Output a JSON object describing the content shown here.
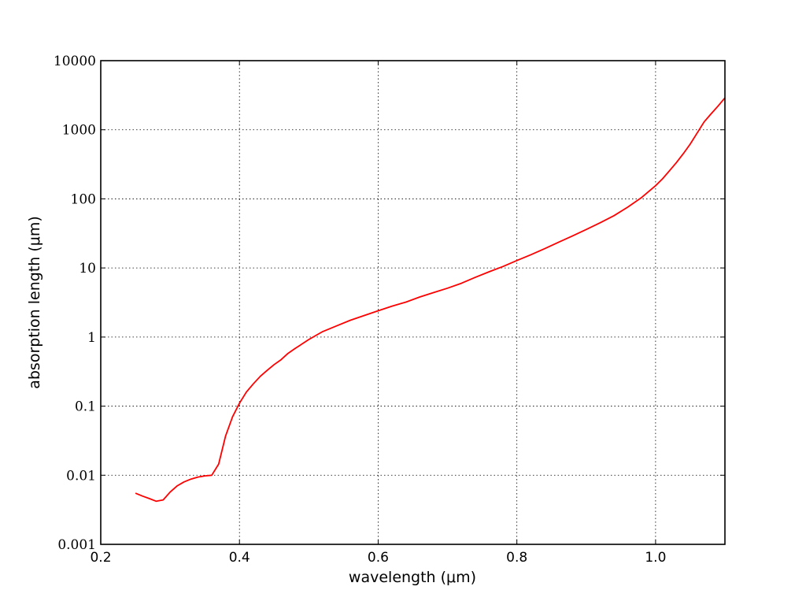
{
  "chart_data": {
    "type": "line",
    "title": "",
    "xlabel": "wavelength (μm)",
    "ylabel": "absorption length (μm)",
    "xscale": "linear",
    "yscale": "log",
    "xlim": [
      0.2,
      1.1
    ],
    "ylim": [
      0.001,
      10000
    ],
    "grid": true,
    "legend": "none",
    "x_ticks": [
      0.2,
      0.4,
      0.6,
      0.8,
      1.0
    ],
    "x_tick_labels": [
      "0.2",
      "0.4",
      "0.6",
      "0.8",
      "1.0"
    ],
    "y_ticks": [
      0.001,
      0.01,
      0.1,
      1,
      10,
      100,
      1000,
      10000
    ],
    "y_tick_labels": [
      "0.001",
      "0.01",
      "0.1",
      "1",
      "10",
      "100",
      "1000",
      "10000"
    ],
    "series": [
      {
        "color": "#ff0000",
        "x": [
          0.25,
          0.26,
          0.27,
          0.28,
          0.29,
          0.3,
          0.31,
          0.32,
          0.33,
          0.34,
          0.35,
          0.36,
          0.37,
          0.38,
          0.39,
          0.4,
          0.41,
          0.42,
          0.43,
          0.44,
          0.45,
          0.46,
          0.47,
          0.48,
          0.49,
          0.5,
          0.52,
          0.54,
          0.56,
          0.58,
          0.6,
          0.62,
          0.64,
          0.66,
          0.68,
          0.7,
          0.72,
          0.74,
          0.76,
          0.78,
          0.8,
          0.82,
          0.84,
          0.86,
          0.88,
          0.9,
          0.92,
          0.94,
          0.96,
          0.98,
          1.0,
          1.01,
          1.02,
          1.03,
          1.04,
          1.05,
          1.06,
          1.07,
          1.08,
          1.09,
          1.1
        ],
        "values": [
          0.0055,
          0.005,
          0.0046,
          0.0042,
          0.0044,
          0.0057,
          0.007,
          0.008,
          0.0088,
          0.0094,
          0.0098,
          0.01,
          0.0145,
          0.037,
          0.07,
          0.11,
          0.16,
          0.21,
          0.27,
          0.33,
          0.4,
          0.47,
          0.58,
          0.68,
          0.79,
          0.92,
          1.2,
          1.45,
          1.75,
          2.05,
          2.4,
          2.8,
          3.2,
          3.8,
          4.4,
          5.1,
          6.0,
          7.3,
          8.8,
          10.5,
          12.8,
          15.5,
          19.0,
          23.5,
          29.0,
          36.0,
          45.0,
          57.0,
          76.0,
          105.0,
          155.0,
          195.0,
          255.0,
          335.0,
          450.0,
          620.0,
          900.0,
          1300.0,
          1700.0,
          2200.0,
          2900.0
        ]
      }
    ]
  }
}
